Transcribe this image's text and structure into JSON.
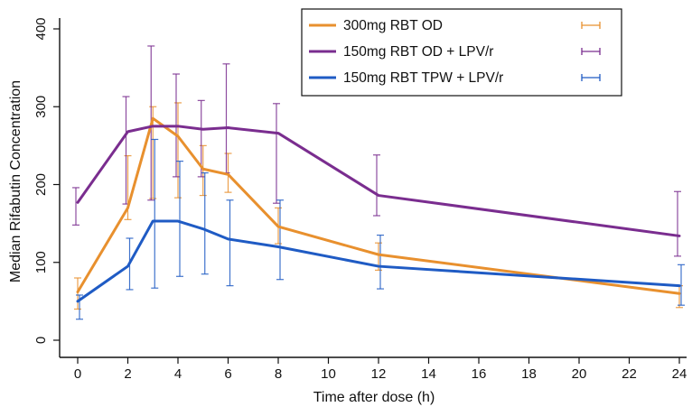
{
  "chart_data": {
    "type": "line",
    "title": "",
    "xlabel": "Time after dose (h)",
    "ylabel": "Median Rifabutin Concentration",
    "xlim": [
      0,
      24
    ],
    "ylim": [
      0,
      400
    ],
    "xticks": [
      0,
      2,
      4,
      6,
      8,
      10,
      12,
      14,
      16,
      18,
      20,
      22,
      24
    ],
    "yticks": [
      0,
      100,
      200,
      300,
      400
    ],
    "grid": false,
    "legend_position": "top-right",
    "error_bars": true,
    "series": [
      {
        "name": "300mg RBT OD",
        "color": "#E8902E",
        "x": [
          0,
          2,
          3,
          4,
          5,
          6,
          8,
          12,
          24
        ],
        "y": [
          62,
          170,
          285,
          262,
          220,
          213,
          146,
          110,
          60
        ],
        "err_low": [
          40,
          155,
          182,
          183,
          186,
          190,
          124,
          90,
          42
        ],
        "err_high": [
          80,
          237,
          300,
          305,
          250,
          240,
          170,
          125,
          70
        ]
      },
      {
        "name": "150mg RBT OD + LPV/r",
        "color": "#7A2D8F",
        "x": [
          0,
          2,
          3,
          4,
          5,
          6,
          8,
          12,
          24
        ],
        "y": [
          177,
          268,
          275,
          275,
          271,
          273,
          266,
          186,
          134
        ],
        "err_low": [
          148,
          175,
          180,
          210,
          210,
          215,
          176,
          160,
          108
        ],
        "err_high": [
          196,
          313,
          378,
          342,
          308,
          355,
          304,
          238,
          191
        ]
      },
      {
        "name": "150mg RBT TPW + LPV/r",
        "color": "#1F5BC4",
        "x": [
          0,
          2,
          3,
          4,
          5,
          6,
          8,
          12,
          24
        ],
        "y": [
          50,
          95,
          153,
          153,
          143,
          130,
          120,
          95,
          70
        ],
        "err_low": [
          27,
          65,
          67,
          82,
          85,
          70,
          78,
          66,
          45
        ],
        "err_high": [
          58,
          131,
          258,
          230,
          215,
          180,
          180,
          135,
          97
        ]
      }
    ]
  }
}
